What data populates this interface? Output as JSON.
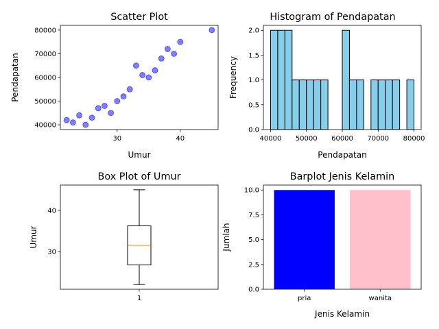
{
  "colors": {
    "scatter_point": "#0000ff",
    "hist_fill": "#87ceeb",
    "box_median": "#ff7f0e",
    "bar_pria": "#0000ff",
    "bar_wanita": "#ffc0cb"
  },
  "chart_data": [
    {
      "id": "scatter",
      "type": "scatter",
      "title": "Scatter Plot",
      "xlabel": "Umur",
      "ylabel": "Pendapatan",
      "xlim": [
        21,
        46
      ],
      "ylim": [
        38000,
        82000
      ],
      "xticks": [
        30,
        40
      ],
      "yticks": [
        40000,
        50000,
        60000,
        70000,
        80000
      ],
      "points": [
        {
          "x": 22,
          "y": 42000
        },
        {
          "x": 23,
          "y": 41000
        },
        {
          "x": 24,
          "y": 44000
        },
        {
          "x": 25,
          "y": 40000
        },
        {
          "x": 26,
          "y": 43000
        },
        {
          "x": 27,
          "y": 47000
        },
        {
          "x": 28,
          "y": 48000
        },
        {
          "x": 29,
          "y": 45000
        },
        {
          "x": 30,
          "y": 50000
        },
        {
          "x": 31,
          "y": 52000
        },
        {
          "x": 32,
          "y": 55000
        },
        {
          "x": 33,
          "y": 65000
        },
        {
          "x": 34,
          "y": 61000
        },
        {
          "x": 35,
          "y": 60000
        },
        {
          "x": 36,
          "y": 63000
        },
        {
          "x": 37,
          "y": 68000
        },
        {
          "x": 38,
          "y": 72000
        },
        {
          "x": 39,
          "y": 70000
        },
        {
          "x": 40,
          "y": 75000
        },
        {
          "x": 45,
          "y": 80000
        }
      ]
    },
    {
      "id": "histogram",
      "type": "bar",
      "title": "Histogram of Pendapatan",
      "xlabel": "Pendapatan",
      "ylabel": "Frequency",
      "xlim": [
        38000,
        82000
      ],
      "ylim": [
        0,
        2.1
      ],
      "xticks": [
        40000,
        50000,
        60000,
        70000,
        80000
      ],
      "yticks": [
        0.0,
        0.5,
        1.0,
        1.5,
        2.0
      ],
      "bin_start": 40000,
      "bin_width": 2000,
      "counts": [
        2,
        2,
        2,
        1,
        1,
        1,
        1,
        1,
        0,
        0,
        2,
        1,
        1,
        0,
        1,
        1,
        1,
        1,
        0,
        1
      ]
    },
    {
      "id": "boxplot",
      "type": "box",
      "title": "Box Plot of Umur",
      "ylabel": "Umur",
      "ylim": [
        20.85,
        46.15
      ],
      "yticks": [
        30,
        40
      ],
      "xtick_label": "1",
      "stats": {
        "min": 22,
        "q1": 26.75,
        "median": 31.5,
        "q3": 36.25,
        "max": 45
      }
    },
    {
      "id": "barplot",
      "type": "bar",
      "title": "Barplot Jenis Kelamin",
      "xlabel": "Jenis Kelamin",
      "ylabel": "Jumlah",
      "ylim": [
        0,
        10.5
      ],
      "yticks": [
        0.0,
        2.5,
        5.0,
        7.5,
        10.0
      ],
      "categories": [
        "pria",
        "wanita"
      ],
      "values": [
        10,
        10
      ]
    }
  ]
}
